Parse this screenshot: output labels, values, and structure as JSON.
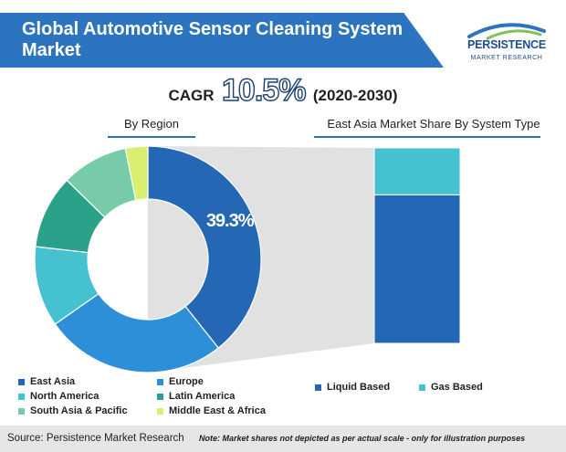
{
  "header": {
    "title": "Global Automotive Sensor Cleaning System Market",
    "brand_name": "PERSISTENCE",
    "brand_sub": "MARKET RESEARCH",
    "cagr_label": "CAGR",
    "cagr_value": "10.5%",
    "cagr_period": "(2020-2030)"
  },
  "colors": {
    "title_bg": "#2c74c0",
    "accent": "#2c74c0",
    "footer_bg": "#e6e6e6"
  },
  "chart_data": [
    {
      "type": "pie",
      "variant": "donut",
      "title": "By Region",
      "categories": [
        "East Asia",
        "Europe",
        "North America",
        "Latin America",
        "South Asia & Pacific",
        "Middle East & Africa"
      ],
      "values": [
        39.3,
        26.0,
        11.5,
        10.5,
        9.5,
        3.2
      ],
      "colors": [
        "#2467b5",
        "#2e8fd9",
        "#45c1cf",
        "#2ba18a",
        "#78cba9",
        "#d8ef6f"
      ],
      "labels": [
        {
          "category": "East Asia",
          "text": "39.3%"
        }
      ],
      "legend_position": "bottom"
    },
    {
      "type": "bar",
      "variant": "stacked",
      "title": "East Asia Market Share By System Type",
      "categories": [
        "East Asia"
      ],
      "series": [
        {
          "name": "Liquid Based",
          "values": [
            76
          ],
          "color": "#2467b5"
        },
        {
          "name": "Gas Based",
          "values": [
            24
          ],
          "color": "#45c1cf"
        }
      ],
      "ylim": [
        0,
        100
      ],
      "legend_position": "bottom"
    }
  ],
  "footer": {
    "source": "Source: Persistence Market Research",
    "note": "Note: Market shares not depicted as per actual scale - only for illustration purposes"
  }
}
